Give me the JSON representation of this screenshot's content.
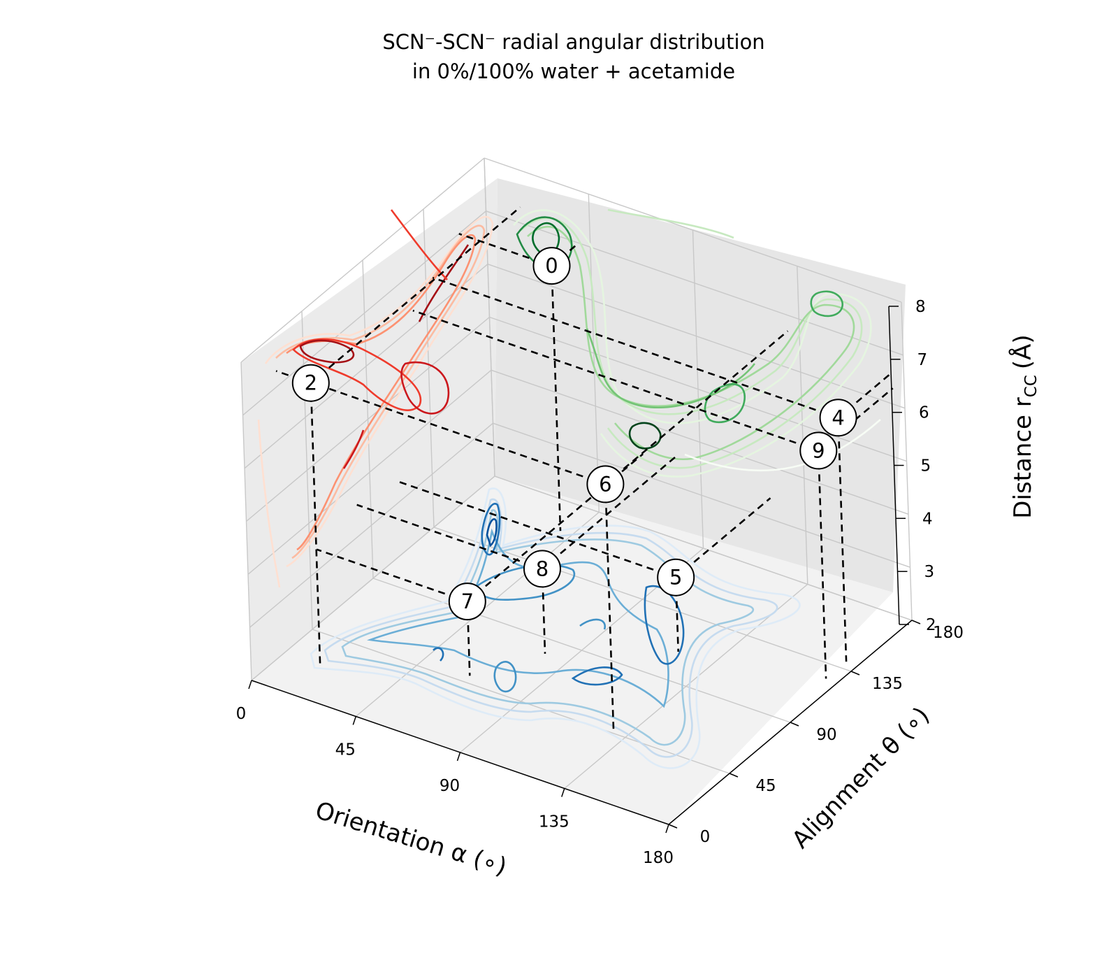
{
  "chart_data": {
    "type": "contour3d",
    "title_line1": "SCN⁻-SCN⁻ radial angular distribution",
    "title_line2": "in 0%/100% water + acetamide",
    "xlabel": "Orientation α (∘)",
    "ylabel": "Alignment θ (∘)",
    "zlabel": "Distance r",
    "zlabel_sub": "CC",
    "zlabel_unit": "(Å)",
    "xlim": [
      0,
      180
    ],
    "ylim": [
      0,
      180
    ],
    "zlim": [
      2,
      8
    ],
    "xticks": [
      0,
      45,
      90,
      135,
      180
    ],
    "yticks": [
      0,
      45,
      90,
      135,
      180
    ],
    "zticks": [
      2,
      3,
      4,
      5,
      6,
      7,
      8
    ],
    "grid": true,
    "projections": [
      {
        "plane": "alpha-theta (floor)",
        "colormap": "Blues",
        "color": "#2171b5"
      },
      {
        "plane": "alpha-r (left wall)",
        "colormap": "Reds",
        "color": "#cb181d"
      },
      {
        "plane": "theta-r (back wall)",
        "colormap": "Greens",
        "color": "#238b45"
      }
    ],
    "points": [
      {
        "label": "0",
        "alpha": 40,
        "theta": 160,
        "r": 7.0
      },
      {
        "label": "2",
        "alpha": 15,
        "theta": 25,
        "r": 7.3
      },
      {
        "label": "4",
        "alpha": 175,
        "theta": 140,
        "r": 6.6
      },
      {
        "label": "5",
        "alpha": 120,
        "theta": 110,
        "r": 3.4
      },
      {
        "label": "6",
        "alpha": 130,
        "theta": 45,
        "r": 6.7
      },
      {
        "label": "7",
        "alpha": 65,
        "theta": 50,
        "r": 3.4
      },
      {
        "label": "8",
        "alpha": 80,
        "theta": 80,
        "r": 3.6
      },
      {
        "label": "9",
        "alpha": 175,
        "theta": 125,
        "r": 6.3
      }
    ]
  }
}
